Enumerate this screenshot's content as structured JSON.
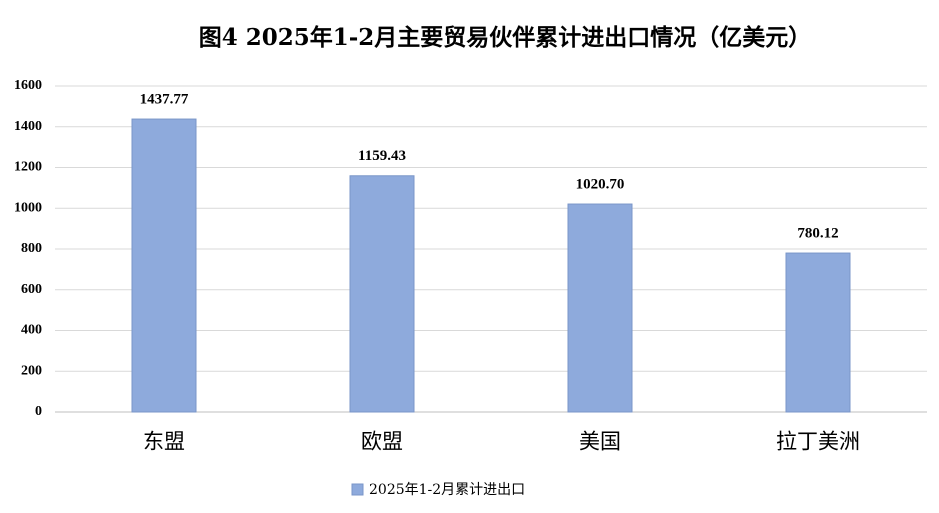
{
  "chart_data": {
    "type": "bar",
    "title": "图4 2025年1-2月主要贸易伙伴累计进出口情况（亿美元）",
    "categories": [
      "东盟",
      "欧盟",
      "美国",
      "拉丁美洲"
    ],
    "series": [
      {
        "name": "2025年1-2月累计进出口",
        "color": "#8eaadc",
        "values": [
          1437.77,
          1159.43,
          1020.7,
          780.12
        ],
        "value_labels": [
          "1437.77",
          "1159.43",
          "1020.70",
          "780.12"
        ]
      }
    ],
    "ylim": [
      0,
      1600
    ],
    "yticks": [
      0,
      200,
      400,
      600,
      800,
      1000,
      1200,
      1400,
      1600
    ],
    "grid": true,
    "legend": "bottom"
  }
}
